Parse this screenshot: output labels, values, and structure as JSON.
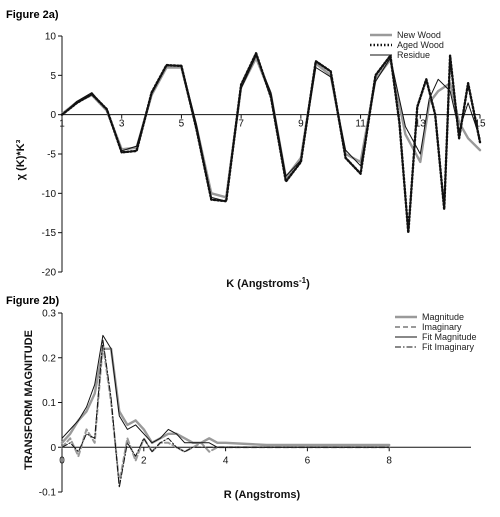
{
  "chart_data": [
    {
      "panel": "Figure 2a)",
      "type": "line",
      "xlabel": "K (Angstroms",
      "xlabel_sup": "-1",
      "xlabel_end": ")",
      "ylabel": "χ (K)*K³",
      "xlim": [
        1,
        15
      ],
      "ylim": [
        -20,
        10
      ],
      "x_ticks": [
        "1",
        "3",
        "5",
        "7",
        "9",
        "11",
        "13",
        "15"
      ],
      "x_tick_values": [
        1,
        3,
        5,
        7,
        9,
        11,
        13,
        15
      ],
      "y_ticks": [
        "10",
        "5",
        "0",
        "-5",
        "-10",
        "-15",
        "-20"
      ],
      "y_tick_values": [
        10,
        5,
        0,
        -5,
        -10,
        -15,
        -20
      ],
      "legend": {
        "position": "top-right"
      },
      "series": [
        {
          "name": "New Wood",
          "style": "gray-solid",
          "x": [
            1,
            1.5,
            2,
            2.5,
            3,
            3.5,
            4,
            4.5,
            5,
            5.5,
            6,
            6.5,
            7,
            7.5,
            8,
            8.5,
            9,
            9.5,
            10,
            10.5,
            11,
            11.5,
            12,
            12.5,
            13,
            13.3,
            13.6,
            14,
            14.3,
            14.6,
            15
          ],
          "y": [
            0.1,
            1.6,
            2.5,
            0.5,
            -4.4,
            -4.2,
            2.5,
            6.0,
            6.0,
            -1.5,
            -10.0,
            -10.5,
            3.5,
            7.2,
            2.5,
            -8.0,
            -5.5,
            6.5,
            5.0,
            -5.0,
            -6.0,
            4.5,
            7.0,
            -2.5,
            -6.0,
            1.5,
            3.0,
            4.0,
            -1.0,
            -3.0,
            -4.5
          ]
        },
        {
          "name": "Aged Wood",
          "style": "black-dotted",
          "x": [
            1,
            1.5,
            2,
            2.5,
            3,
            3.5,
            4,
            4.5,
            5,
            5.5,
            6,
            6.5,
            7,
            7.5,
            8,
            8.5,
            9,
            9.5,
            10,
            10.5,
            11,
            11.5,
            12,
            12.3,
            12.6,
            12.9,
            13.2,
            13.5,
            13.8,
            14,
            14.3,
            14.6,
            15
          ],
          "y": [
            0.0,
            1.5,
            2.6,
            0.7,
            -4.8,
            -4.6,
            2.8,
            6.3,
            6.2,
            -1.8,
            -10.8,
            -11.0,
            3.8,
            7.8,
            2.2,
            -8.5,
            -6.0,
            6.8,
            5.5,
            -5.5,
            -7.5,
            5.0,
            7.5,
            -1.0,
            -15.0,
            1.0,
            4.5,
            0.0,
            -12.0,
            7.5,
            -3.0,
            4.0,
            -3.5
          ]
        },
        {
          "name": "Residue",
          "style": "black-thin",
          "x": [
            1,
            1.5,
            2,
            2.5,
            3,
            3.5,
            4,
            4.5,
            5,
            5.5,
            6,
            6.5,
            7,
            7.5,
            8,
            8.5,
            9,
            9.5,
            10,
            10.5,
            11,
            11.5,
            12,
            12.5,
            13,
            13.3,
            13.6,
            14,
            14.3,
            14.6,
            15
          ],
          "y": [
            0.0,
            1.7,
            2.8,
            0.6,
            -4.6,
            -4.0,
            2.6,
            6.2,
            6.3,
            -1.2,
            -10.5,
            -11.0,
            3.3,
            7.5,
            2.8,
            -7.8,
            -5.8,
            6.0,
            4.8,
            -4.5,
            -6.5,
            4.2,
            7.2,
            -1.5,
            -5.0,
            2.0,
            4.5,
            3.0,
            -2.0,
            1.5,
            -3.0
          ]
        }
      ]
    },
    {
      "panel": "Figure 2b)",
      "type": "line",
      "xlabel": "R (Angstroms)",
      "ylabel": "TRANSFORM MAGNITUDE",
      "xlim": [
        0,
        10
      ],
      "ylim": [
        -0.1,
        0.3
      ],
      "x_ticks": [
        "0",
        "2",
        "4",
        "6",
        "8"
      ],
      "x_tick_values": [
        0,
        2,
        4,
        6,
        8
      ],
      "y_ticks": [
        "0.3",
        "0.2",
        "0.1",
        "0",
        "-0.1"
      ],
      "y_tick_values": [
        0.3,
        0.2,
        0.1,
        0,
        -0.1
      ],
      "legend": {
        "position": "top-right"
      },
      "series": [
        {
          "name": "Magnitude",
          "style": "gray-solid",
          "x": [
            0,
            0.2,
            0.4,
            0.6,
            0.8,
            1.0,
            1.2,
            1.4,
            1.6,
            1.8,
            2.0,
            2.2,
            2.4,
            2.6,
            2.8,
            3.0,
            3.2,
            3.4,
            3.6,
            3.8,
            4.0,
            5,
            6,
            7,
            8
          ],
          "y": [
            0.01,
            0.03,
            0.06,
            0.08,
            0.12,
            0.22,
            0.22,
            0.08,
            0.05,
            0.06,
            0.04,
            0.01,
            0.02,
            0.03,
            0.03,
            0.02,
            0.01,
            0.01,
            0.02,
            0.01,
            0.01,
            0.005,
            0.005,
            0.005,
            0.005
          ]
        },
        {
          "name": "Imaginary",
          "style": "gray-dashed",
          "x": [
            0,
            0.2,
            0.4,
            0.6,
            0.8,
            1.0,
            1.2,
            1.4,
            1.6,
            1.8,
            2.0,
            2.2,
            2.4,
            2.6,
            2.8,
            3.0,
            3.2,
            3.4,
            3.6,
            3.8,
            4.0,
            5,
            6,
            7,
            8
          ],
          "y": [
            0.0,
            0.02,
            -0.02,
            0.04,
            0.01,
            0.23,
            0.1,
            -0.08,
            0.02,
            -0.03,
            0.02,
            -0.01,
            0.01,
            0.01,
            0.0,
            -0.01,
            0.0,
            0.01,
            -0.01,
            0.0,
            0.0,
            0.0,
            0.0,
            0.0,
            0.0
          ]
        },
        {
          "name": "Fit Magnitude",
          "style": "black-thin",
          "x": [
            0,
            0.2,
            0.4,
            0.6,
            0.8,
            1.0,
            1.2,
            1.4,
            1.6,
            1.8,
            2.0,
            2.2,
            2.4,
            2.6,
            2.8,
            3.0,
            3.2,
            3.4,
            3.6,
            3.8,
            4.0,
            5,
            6,
            7,
            8
          ],
          "y": [
            0.02,
            0.04,
            0.06,
            0.09,
            0.14,
            0.25,
            0.22,
            0.07,
            0.04,
            0.05,
            0.03,
            0.01,
            0.02,
            0.04,
            0.03,
            0.01,
            0.01,
            0.01,
            0.01,
            0.0,
            0.0,
            0.0,
            0.0,
            0.0,
            0.0
          ]
        },
        {
          "name": "Fit Imaginary",
          "style": "black-dashdot",
          "x": [
            0,
            0.2,
            0.4,
            0.6,
            0.8,
            1.0,
            1.2,
            1.4,
            1.6,
            1.8,
            2.0,
            2.2,
            2.4,
            2.6,
            2.8,
            3.0,
            3.2,
            3.4,
            3.6,
            3.8,
            4.0,
            5,
            6,
            7,
            8
          ],
          "y": [
            0.0,
            0.01,
            -0.01,
            0.03,
            0.02,
            0.24,
            0.11,
            -0.09,
            0.01,
            -0.02,
            0.02,
            -0.01,
            0.01,
            0.02,
            0.0,
            -0.01,
            0.0,
            0.0,
            0.0,
            0.0,
            0.0,
            0.0,
            0.0,
            0.0,
            0.0
          ]
        }
      ]
    }
  ]
}
